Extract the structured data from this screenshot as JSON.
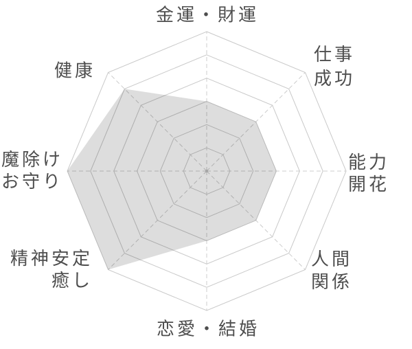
{
  "chart_data": {
    "type": "radar",
    "rings": 6,
    "max_value": 6,
    "grid_shape": "octagon",
    "axis_lines": "dashed",
    "legend": "none",
    "axes": [
      {
        "label": "金運・財運",
        "lines": [
          "金運・財運"
        ],
        "value": 3
      },
      {
        "label": "仕事成功",
        "lines": [
          "仕事",
          "成功"
        ],
        "value": 3
      },
      {
        "label": "能力開花",
        "lines": [
          "能力",
          "開花"
        ],
        "value": 3
      },
      {
        "label": "人間関係",
        "lines": [
          "人間",
          "関係"
        ],
        "value": 3
      },
      {
        "label": "恋愛・結婚",
        "lines": [
          "恋愛・結婚"
        ],
        "value": 3
      },
      {
        "label": "精神安定癒し",
        "lines": [
          "精神安定",
          "癒し"
        ],
        "value": 6
      },
      {
        "label": "魔除けお守り",
        "lines": [
          "魔除け",
          "お守り"
        ],
        "value": 6
      },
      {
        "label": "健康",
        "lines": [
          "健康"
        ],
        "value": 5
      }
    ],
    "colors": {
      "grid": "#c9c9c9",
      "axis": "#cccccc",
      "fill": "rgba(0,0,0,0.135)",
      "text": "#4e4e4e",
      "center_dot": "#a6a6a6",
      "background": "#ffffff"
    }
  }
}
